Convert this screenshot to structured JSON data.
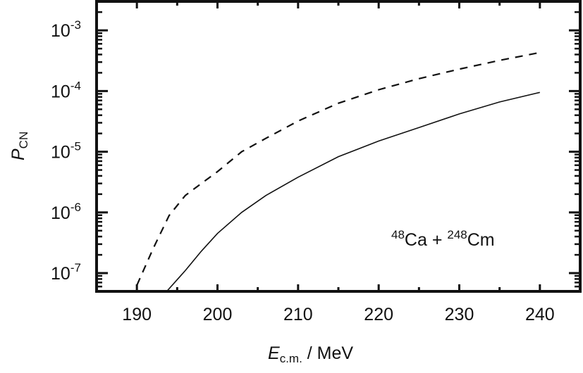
{
  "chart_data": {
    "type": "line",
    "title": "",
    "xlabel": {
      "main": "E",
      "sub": "c.m.",
      "rest": " / MeV"
    },
    "ylabel": {
      "main": "P",
      "sub": "CN"
    },
    "xlim": [
      185,
      245
    ],
    "ylim": [
      5e-08,
      0.003
    ],
    "yscale": "log",
    "grid": false,
    "x_ticks": [
      190,
      200,
      210,
      220,
      230,
      240
    ],
    "x_tick_labels": [
      "190",
      "200",
      "210",
      "220",
      "230",
      "240"
    ],
    "y_ticks": [
      0.001,
      0.0001,
      1e-05,
      1e-06,
      1e-07
    ],
    "y_tick_labels": [
      {
        "base": "10",
        "exp": "-3"
      },
      {
        "base": "10",
        "exp": "-4"
      },
      {
        "base": "10",
        "exp": "-5"
      },
      {
        "base": "10",
        "exp": "-6"
      },
      {
        "base": "10",
        "exp": "-7"
      }
    ],
    "annotation": {
      "a1": "48",
      "e1": "Ca + ",
      "a2": "248",
      "e2": "Cm"
    },
    "series": [
      {
        "name": "dashed",
        "style": "dashed",
        "color": "#111111",
        "x": [
          190,
          192,
          194,
          196,
          198,
          200,
          203,
          206,
          210,
          215,
          220,
          225,
          230,
          235,
          240
        ],
        "y": [
          6.3e-08,
          2.5e-07,
          8.9e-07,
          1.9e-06,
          3e-06,
          4.7e-06,
          1e-05,
          1.66e-05,
          3.2e-05,
          6.3e-05,
          0.000105,
          0.00016,
          0.00023,
          0.00032,
          0.00043
        ]
      },
      {
        "name": "solid",
        "style": "solid",
        "color": "#111111",
        "x": [
          193.7,
          196,
          198,
          200,
          203,
          206,
          210,
          215,
          220,
          225,
          230,
          235,
          240
        ],
        "y": [
          5e-08,
          1.1e-07,
          2.3e-07,
          4.5e-07,
          1e-06,
          1.9e-06,
          3.8e-06,
          8.3e-06,
          1.5e-05,
          2.5e-05,
          4.2e-05,
          6.6e-05,
          9.5e-05
        ]
      }
    ]
  }
}
